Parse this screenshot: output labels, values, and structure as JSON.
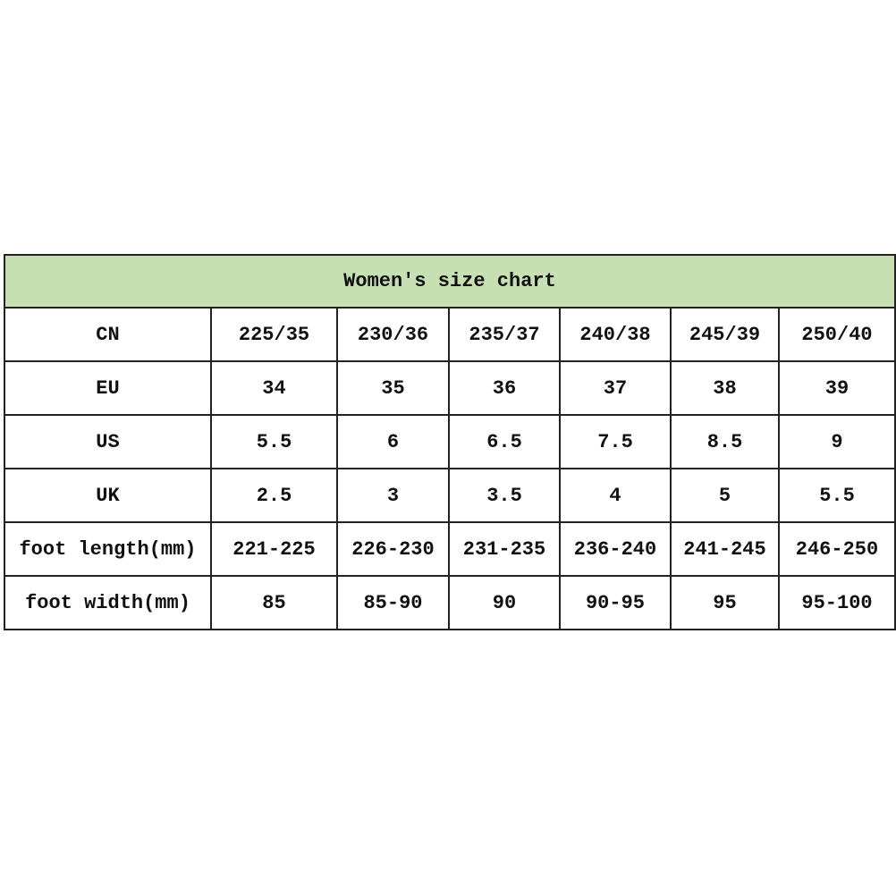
{
  "title": "Women's size chart",
  "header_color": "#c6e0b4",
  "rows": [
    {
      "label": "CN",
      "values": [
        "225/35",
        "230/36",
        "235/37",
        "240/38",
        "245/39",
        "250/40"
      ]
    },
    {
      "label": "EU",
      "values": [
        "34",
        "35",
        "36",
        "37",
        "38",
        "39"
      ]
    },
    {
      "label": "US",
      "values": [
        "5.5",
        "6",
        "6.5",
        "7.5",
        "8.5",
        "9"
      ]
    },
    {
      "label": "UK",
      "values": [
        "2.5",
        "3",
        "3.5",
        "4",
        "5",
        "5.5"
      ]
    },
    {
      "label": "foot length(mm)",
      "values": [
        "221-225",
        "226-230",
        "231-235",
        "236-240",
        "241-245",
        "246-250"
      ]
    },
    {
      "label": "foot width(mm)",
      "values": [
        "85",
        "85-90",
        "90",
        "90-95",
        "95",
        "95-100"
      ]
    }
  ]
}
